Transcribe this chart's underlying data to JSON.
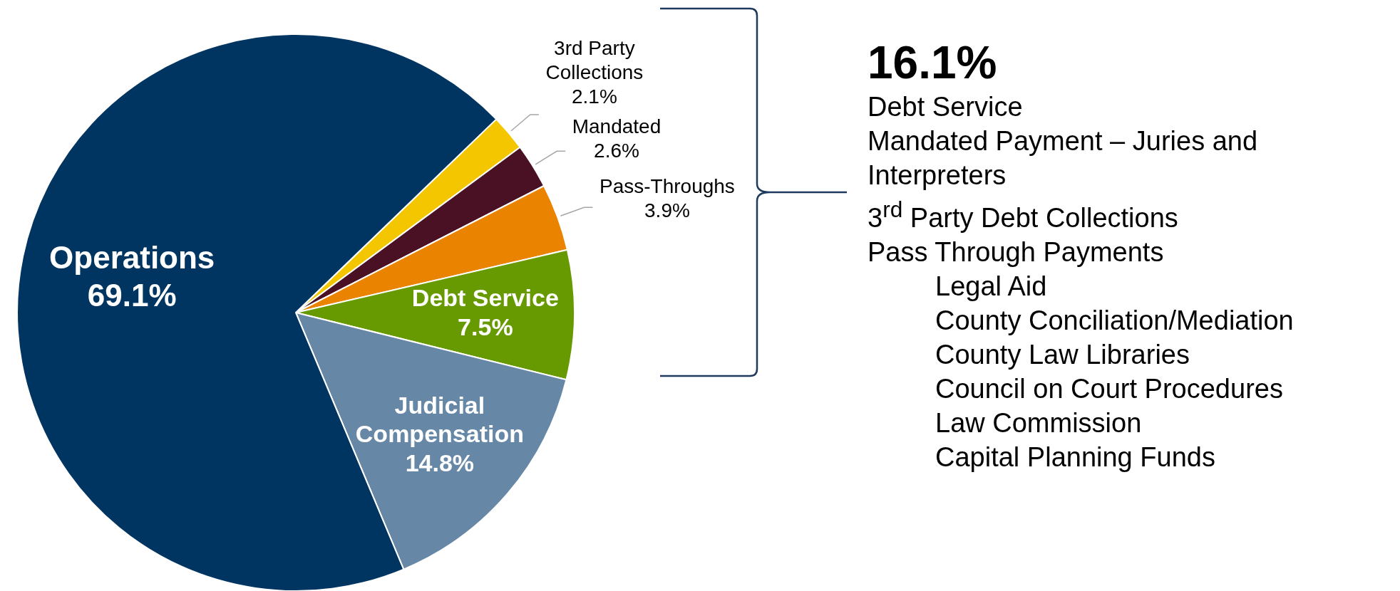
{
  "chart_data": {
    "type": "pie",
    "categories": [
      "3rd Party Collections",
      "Mandated",
      "Pass-Throughs",
      "Debt Service",
      "Judicial Compensation",
      "Operations"
    ],
    "values": [
      2.1,
      2.6,
      3.9,
      7.5,
      14.8,
      69.1
    ],
    "value_labels": [
      "2.1%",
      "2.6%",
      "3.9%",
      "7.5%",
      "14.8%",
      "69.1%"
    ],
    "colors": [
      "#f3c600",
      "#4a1023",
      "#e98300",
      "#679a00",
      "#6787a6",
      "#003562"
    ],
    "annotations": [
      "16.1%",
      "Debt Service",
      "Mandated Payment – Juries and Interpreters",
      "3$^{rd}$ Party Debt Collections",
      "Pass Through Payments",
      "Legal Aid",
      "County Conciliation/Mediation",
      "County Law Libraries",
      "Council on Court Procedures",
      "Law Commission",
      "Capital Planning Funds"
    ]
  }
}
